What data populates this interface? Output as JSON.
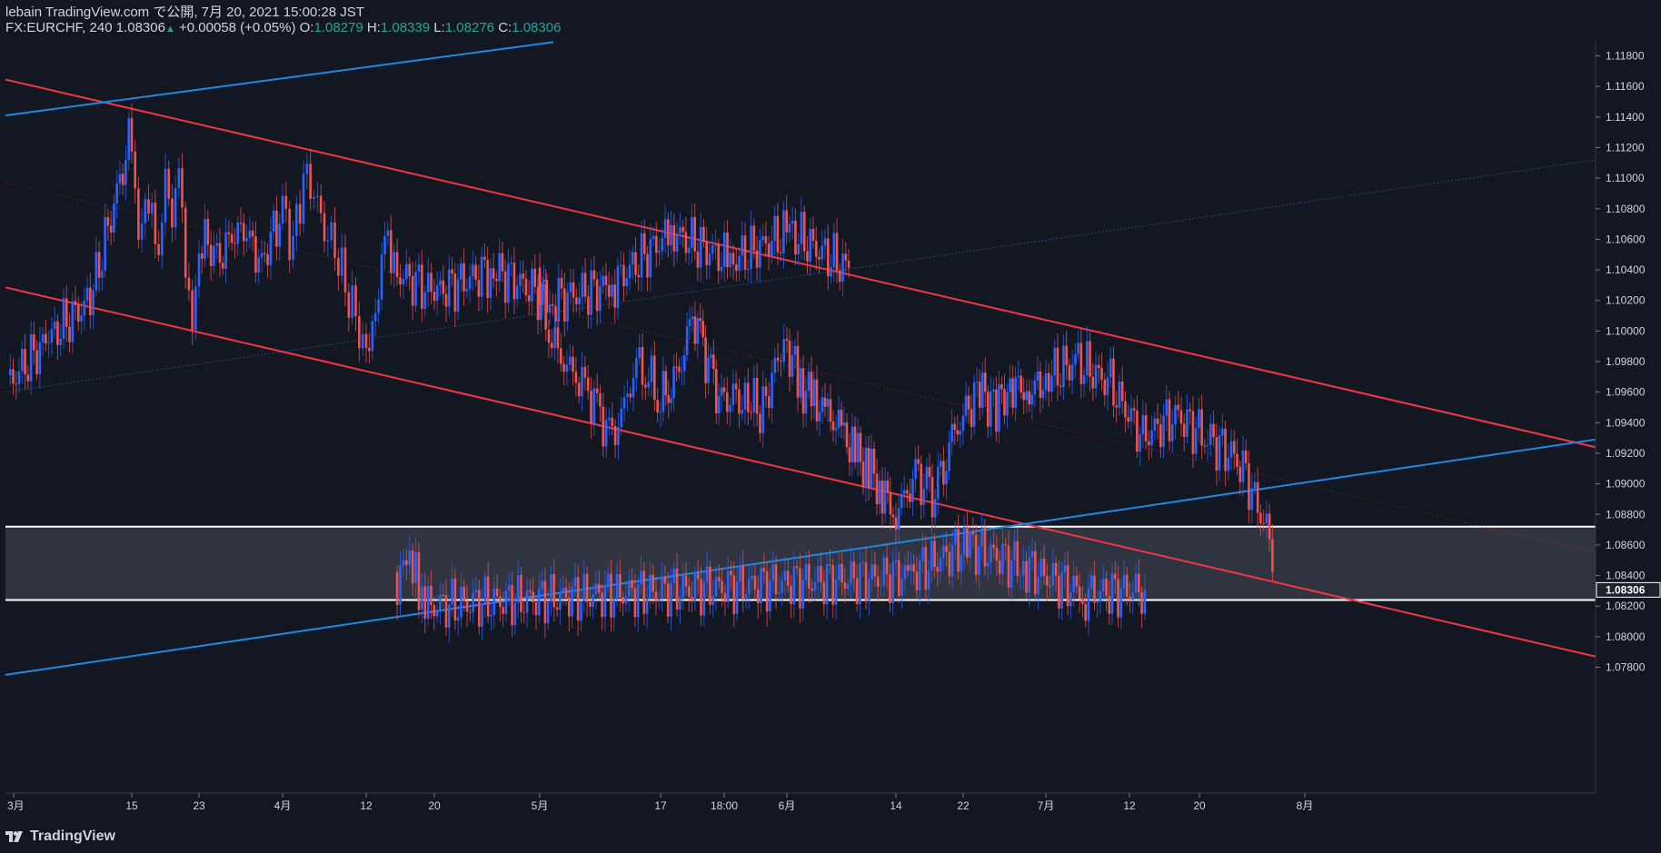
{
  "header": {
    "line1": "lebain TradingView.com で公開, 7月 20, 2021 15:00:28 JST",
    "symbol": "FX:EURCHF, 240",
    "last": "1.08306",
    "change_arrow": "▲",
    "change": "+0.00058 (+0.05%)",
    "o_label": "O:",
    "o_value": "1.08279",
    "h_label": "H:",
    "h_value": "1.08339",
    "l_label": "L:",
    "l_value": "1.08276",
    "c_label": "C:",
    "c_value": "1.08306"
  },
  "footer": {
    "brand": "TradingView",
    "logo_icon": "tradingview-logo-icon"
  },
  "colors": {
    "background": "#131722",
    "up_candle": "#2962ff",
    "down_candle": "#ef5350",
    "channel_line": "#f23645",
    "blue_trendline": "#1e88e5",
    "price_label_bg": "#1e222d",
    "zone_fill": "#363a45"
  },
  "chart_data": {
    "type": "candlestick",
    "symbol": "FX:EURCHF",
    "interval": "240",
    "y_axis": {
      "ticks": [
        "1.11800",
        "1.11600",
        "1.11400",
        "1.11200",
        "1.11000",
        "1.10800",
        "1.10600",
        "1.10400",
        "1.10200",
        "1.10000",
        "1.09800",
        "1.09600",
        "1.09400",
        "1.09200",
        "1.09000",
        "1.08800",
        "1.08600",
        "1.08400",
        "1.08200",
        "1.08000",
        "1.07800"
      ],
      "range": [
        1.0766,
        1.1195
      ],
      "current_price_label": "1.08306",
      "current_price": 1.08306
    },
    "x_axis": {
      "labels": [
        "3月",
        "15",
        "23",
        "4月",
        "12",
        "20",
        "5月",
        "17",
        "18:00",
        "6月",
        "14",
        "22",
        "7月",
        "12",
        "20",
        "8月"
      ]
    },
    "price_path": [
      [
        "3月",
        1.0965
      ],
      [
        "3月",
        1.0995
      ],
      [
        "3月",
        1.102
      ],
      [
        "15",
        1.113
      ],
      [
        "15",
        1.107
      ],
      [
        "15",
        1.109
      ],
      [
        "15",
        1.108
      ],
      [
        "15",
        1.104
      ],
      [
        "15",
        1.1095
      ],
      [
        "15",
        1.106
      ],
      [
        "15",
        1.1105
      ],
      [
        "15",
        1.104
      ],
      [
        "15",
        1.101
      ],
      [
        "23",
        1.106
      ],
      [
        "23",
        1.105
      ],
      [
        "23",
        1.107
      ],
      [
        "23",
        1.1045
      ],
      [
        "4月",
        1.108
      ],
      [
        "4月",
        1.1055
      ],
      [
        "4月",
        1.11
      ],
      [
        "4月",
        1.109
      ],
      [
        "4月",
        1.1065
      ],
      [
        "4月",
        1.1055
      ],
      [
        "4月",
        1.103
      ],
      [
        "4月",
        1.101
      ],
      [
        "12",
        1.0985
      ],
      [
        "12",
        1.1
      ],
      [
        "12",
        1.1015
      ],
      [
        "12",
        1.106
      ],
      [
        "12",
        1.104
      ],
      [
        "20",
        1.1025
      ],
      [
        "20",
        1.104
      ],
      [
        "20",
        1.102
      ],
      [
        "20",
        1.103
      ],
      [
        "20",
        1.1065
      ],
      [
        "20",
        1.1045
      ],
      [
        "20",
        1.1065
      ],
      [
        "20",
        1.104
      ],
      [
        "5月",
        1.102
      ],
      [
        "5月",
        1.0995
      ],
      [
        "5月",
        1.098
      ],
      [
        "5月",
        1.097
      ],
      [
        "5月",
        1.096
      ],
      [
        "5月",
        1.0945
      ],
      [
        "5月",
        1.093
      ],
      [
        "5月",
        1.095
      ],
      [
        "5月",
        1.098
      ],
      [
        "5月",
        1.097
      ],
      [
        "17",
        1.0955
      ],
      [
        "17",
        1.0965
      ],
      [
        "17",
        1.098
      ],
      [
        "17",
        1.101
      ],
      [
        "17",
        1.099
      ],
      [
        "17",
        1.0965
      ],
      [
        "18:00",
        1.095
      ],
      [
        "18:00",
        1.096
      ],
      [
        "18:00",
        1.095
      ],
      [
        "18:00",
        1.0955
      ],
      [
        "18:00",
        1.0945
      ],
      [
        "18:00",
        1.096
      ],
      [
        "18:00",
        1.0985
      ],
      [
        "6月",
        1.099
      ],
      [
        "6月",
        1.0965
      ],
      [
        "6月",
        1.0955
      ],
      [
        "6月",
        1.0945
      ],
      [
        "6月",
        1.0935
      ],
      [
        "6月",
        1.092
      ],
      [
        "6月",
        1.091
      ],
      [
        "6月",
        1.0895
      ],
      [
        "14",
        1.088
      ],
      [
        "14",
        1.0895
      ],
      [
        "14",
        1.0905
      ],
      [
        "14",
        1.089
      ],
      [
        "14",
        1.09
      ],
      [
        "14",
        1.093
      ],
      [
        "22",
        1.0945
      ],
      [
        "22",
        1.096
      ],
      [
        "22",
        1.095
      ],
      [
        "22",
        1.0965
      ],
      [
        "22",
        1.096
      ],
      [
        "7月",
        1.097
      ],
      [
        "7月",
        1.098
      ],
      [
        "7月",
        1.0965
      ],
      [
        "7月",
        1.093
      ],
      [
        "7月",
        1.0945
      ],
      [
        "7月",
        1.093
      ],
      [
        "7月",
        1.0915
      ],
      [
        "7月",
        1.086
      ],
      [
        "12",
        1.0835
      ],
      [
        "12",
        1.0855
      ],
      [
        "12",
        1.085
      ],
      [
        "12",
        1.084
      ],
      [
        "12",
        1.0815
      ],
      [
        "12",
        1.082
      ],
      [
        "20",
        1.084
      ],
      [
        "20",
        1.086
      ],
      [
        "20",
        1.0845
      ],
      [
        "20",
        1.0828
      ],
      [
        "20",
        1.08306
      ]
    ],
    "drawings": [
      {
        "name": "upper-channel-line",
        "color": "red",
        "from": [
          "3月",
          1.11645
        ],
        "to": [
          "8月+",
          1.0924
        ]
      },
      {
        "name": "lower-channel-line",
        "color": "red",
        "from": [
          "3月",
          1.10285
        ],
        "to": [
          "8月+",
          1.0787
        ]
      },
      {
        "name": "channel-midline",
        "color": "red",
        "style": "dotted",
        "from": [
          "3月",
          1.1097
        ],
        "to": [
          "8月+",
          1.0855
        ]
      },
      {
        "name": "blue-trendline-upper",
        "color": "blue",
        "from": [
          "3月",
          1.1141
        ],
        "to": [
          "20",
          1.1189
        ]
      },
      {
        "name": "blue-trendline-lower",
        "color": "blue",
        "from": [
          "3月",
          1.0775
        ],
        "to": [
          "8月+",
          1.0929
        ]
      },
      {
        "name": "blue-trendline-faint",
        "color": "blue",
        "style": "thin",
        "from": [
          "3月",
          1.096
        ],
        "to": [
          "8月+",
          1.1112
        ]
      }
    ],
    "zone": {
      "top": 1.0872,
      "bottom": 1.0824
    }
  }
}
